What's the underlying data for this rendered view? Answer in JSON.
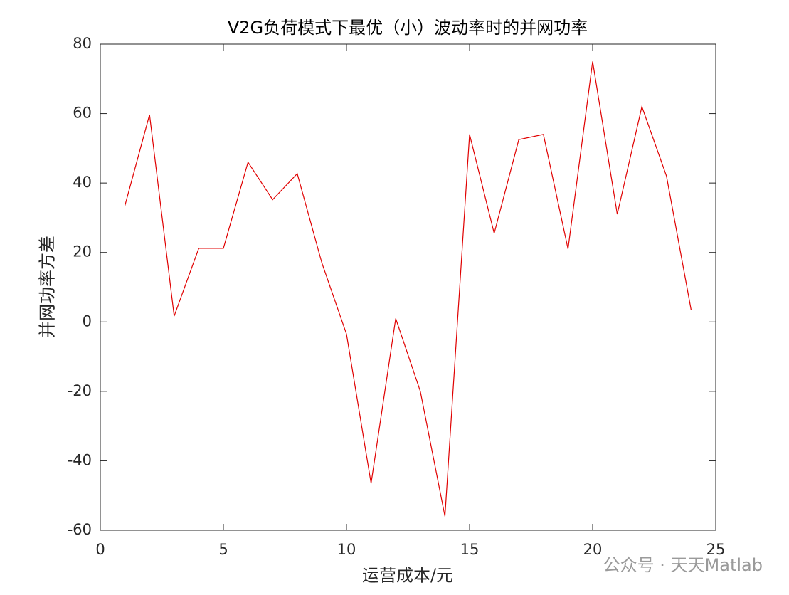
{
  "chart_data": {
    "type": "line",
    "title": "V2G负荷模式下最优（小）波动率时的并网功率",
    "x_label": "运营成本/元",
    "y_label": "并网功率方差",
    "x": [
      1,
      2,
      3,
      4,
      5,
      6,
      7,
      8,
      9,
      10,
      11,
      12,
      13,
      14,
      15,
      16,
      17,
      18,
      19,
      20,
      21,
      22,
      23,
      24
    ],
    "series": [
      {
        "name": "并网功率",
        "color": "#e00000",
        "values": [
          33.5,
          59.7,
          1.7,
          21.2,
          21.2,
          46,
          35.2,
          42.7,
          17,
          -3.5,
          -46.5,
          1,
          -20,
          -56,
          54,
          25.5,
          52.5,
          54,
          21,
          75,
          31,
          62,
          42,
          3.5
        ]
      }
    ],
    "xlim": [
      0,
      25
    ],
    "xticks": [
      0,
      5,
      10,
      15,
      20,
      25
    ],
    "ylim": [
      -60,
      80
    ],
    "yticks": [
      -60,
      -40,
      -20,
      0,
      20,
      40,
      60,
      80
    ],
    "annotation": "公众号 · 天天Matlab"
  }
}
